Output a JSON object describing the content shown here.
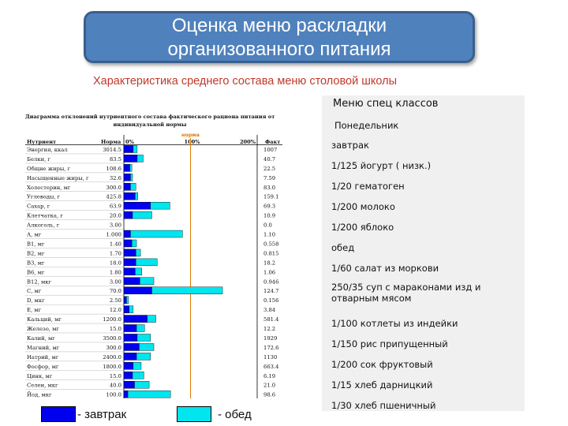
{
  "header": {
    "title_line1": "Оценка меню раскладки",
    "title_line2": "организованного питания",
    "subtitle": "Характеристика среднего состава меню столовой школы"
  },
  "menu": {
    "header": "Меню спец классов",
    "items": [
      "Понедельник",
      "завтрак",
      "1/125 йогурт ( низк.)",
      "1/20 гематоген",
      "1/200 молоко",
      "1/200 яблоко",
      "обед",
      "1/60 салат из моркови",
      "250/35 суп с маракон­ами изд и отварным мясом",
      "1/100 котлеты из индейки",
      "1/150 рис припущенный",
      "1/200 сок фруктовый",
      "1/15 хлеб дарницкий",
      "1/30 хлеб пшеничный"
    ]
  },
  "legend": {
    "breakfast_label": "- завтрак",
    "lunch_label": "- обед",
    "breakfast_color": "#0000ee",
    "lunch_color": "#00e5ee"
  },
  "chart_data": {
    "type": "bar",
    "title": "Диаграмма отклонений нутриентного состава фактического рациона питания от индивидуальной нормы",
    "col_nutrient": "Нутриент",
    "col_norm": "Норма",
    "col_fact": "Факт",
    "norm_marker_label": "норма",
    "ticks": [
      "0%",
      "100%",
      "200%"
    ],
    "xlim": [
      0,
      200
    ],
    "series": [
      {
        "name": "завтрак",
        "color": "#0000ee"
      },
      {
        "name": "обед",
        "color": "#00e5ee"
      }
    ],
    "rows": [
      {
        "nutrient": "Энергия, ккал",
        "norm": "3014.5",
        "fact": "1007",
        "b": 14,
        "l": 20
      },
      {
        "nutrient": "Белки, г",
        "norm": "83.5",
        "fact": "40.7",
        "b": 20,
        "l": 29
      },
      {
        "nutrient": "Общие жиры, г",
        "norm": "108.6",
        "fact": "22.5",
        "b": 9,
        "l": 12
      },
      {
        "nutrient": "Насыщенные жиры, г",
        "norm": "32.6",
        "fact": "7.59",
        "b": 10,
        "l": 13
      },
      {
        "nutrient": "Холестерин, мг",
        "norm": "300.0",
        "fact": "83.0",
        "b": 10,
        "l": 18
      },
      {
        "nutrient": "Углеводы, г",
        "norm": "425.8",
        "fact": "159.1",
        "b": 17,
        "l": 21
      },
      {
        "nutrient": "Сахар, г",
        "norm": "63.9",
        "fact": "69.3",
        "b": 40,
        "l": 69
      },
      {
        "nutrient": "Клетчатка, г",
        "norm": "20.0",
        "fact": "10.9",
        "b": 13,
        "l": 42
      },
      {
        "nutrient": "Алкоголь, г",
        "norm": "3.00",
        "fact": "0.0",
        "b": 0,
        "l": 0
      },
      {
        "nutrient": "А, мг",
        "norm": "1.000",
        "fact": "1.10",
        "b": 10,
        "l": 88
      },
      {
        "nutrient": "В1, мг",
        "norm": "1.40",
        "fact": "0.558",
        "b": 12,
        "l": 19
      },
      {
        "nutrient": "В2, мг",
        "norm": "1.70",
        "fact": "0.815",
        "b": 18,
        "l": 25
      },
      {
        "nutrient": "В3, мг",
        "norm": "18.0",
        "fact": "18.2",
        "b": 18,
        "l": 50
      },
      {
        "nutrient": "В6, мг",
        "norm": "1.80",
        "fact": "1.06",
        "b": 17,
        "l": 27
      },
      {
        "nutrient": "В12, мкг",
        "norm": "3.00",
        "fact": "0.946",
        "b": 24,
        "l": 45
      },
      {
        "nutrient": "С, мг",
        "norm": "70.0",
        "fact": "124.7",
        "b": 42,
        "l": 148
      },
      {
        "nutrient": "D, мкг",
        "norm": "2.50",
        "fact": "0.156",
        "b": 4,
        "l": 7
      },
      {
        "nutrient": "Е, мг",
        "norm": "12.0",
        "fact": "3.84",
        "b": 8,
        "l": 14
      },
      {
        "nutrient": "Кальций, мг",
        "norm": "1200.0",
        "fact": "581.4",
        "b": 35,
        "l": 48
      },
      {
        "nutrient": "Железо, мг",
        "norm": "15.0",
        "fact": "12.2",
        "b": 19,
        "l": 31
      },
      {
        "nutrient": "Калий, мг",
        "norm": "3500.0",
        "fact": "1929",
        "b": 20,
        "l": 40
      },
      {
        "nutrient": "Магний, мг",
        "norm": "300.0",
        "fact": "172.6",
        "b": 23,
        "l": 45
      },
      {
        "nutrient": "Натрий, мг",
        "norm": "2400.0",
        "fact": "1130",
        "b": 19,
        "l": 40
      },
      {
        "nutrient": "Фосфор, мг",
        "norm": "1800.0",
        "fact": "663.4",
        "b": 14,
        "l": 26
      },
      {
        "nutrient": "Цинк, мг",
        "norm": "15.0",
        "fact": "6.19",
        "b": 13,
        "l": 30
      },
      {
        "nutrient": "Селен, мкг",
        "norm": "40.0",
        "fact": "21.0",
        "b": 16,
        "l": 38
      },
      {
        "nutrient": "Йод, мкг",
        "norm": "100.0",
        "fact": "98.6",
        "b": 6,
        "l": 70
      }
    ]
  }
}
